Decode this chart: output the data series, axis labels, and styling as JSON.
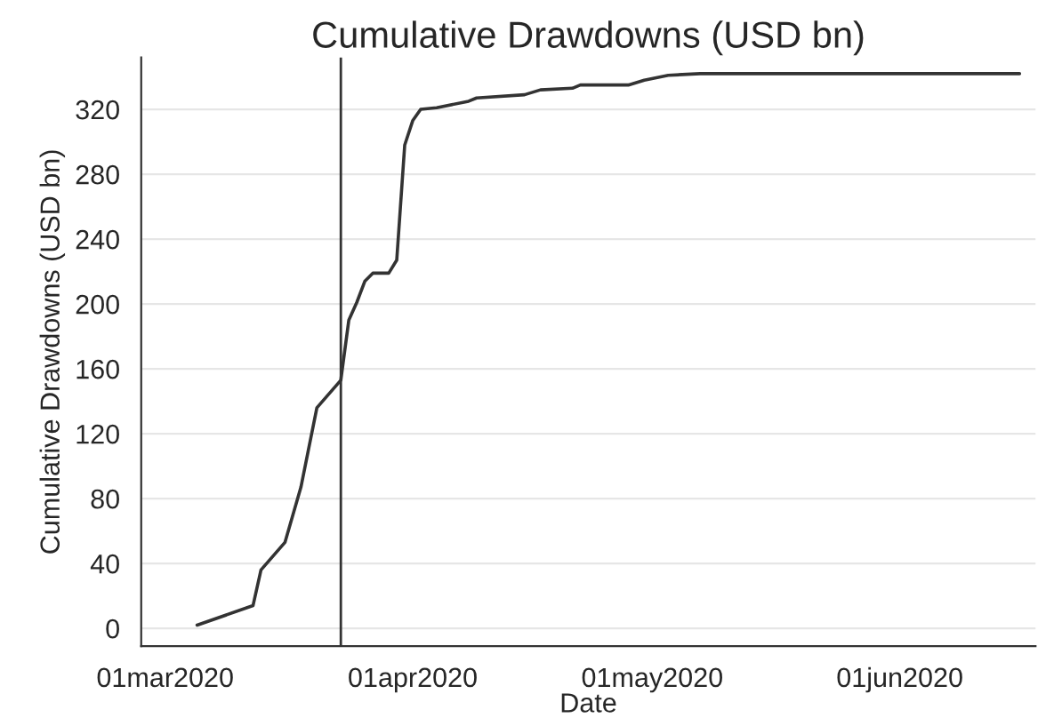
{
  "chart_data": {
    "type": "line",
    "title": "Cumulative Drawdowns (USD bn)",
    "xlabel": "Date",
    "ylabel": "Cumulative Drawdowns (USD bn)",
    "x": [
      "2020-03-05",
      "2020-03-12",
      "2020-03-13",
      "2020-03-16",
      "2020-03-18",
      "2020-03-20",
      "2020-03-23",
      "2020-03-24",
      "2020-03-25",
      "2020-03-26",
      "2020-03-27",
      "2020-03-29",
      "2020-03-30",
      "2020-03-31",
      "2020-04-01",
      "2020-04-02",
      "2020-04-04",
      "2020-04-08",
      "2020-04-09",
      "2020-04-15",
      "2020-04-17",
      "2020-04-21",
      "2020-04-22",
      "2020-04-28",
      "2020-04-30",
      "2020-05-03",
      "2020-05-07",
      "2020-06-16"
    ],
    "series": [
      {
        "color": "#333333",
        "values": [
          2,
          14,
          36,
          53,
          87,
          136,
          153,
          190,
          201,
          214,
          219,
          219,
          227,
          298,
          313,
          320,
          321,
          325,
          327,
          329,
          332,
          333,
          335,
          335,
          338,
          341,
          342,
          342
        ]
      }
    ],
    "xlim": [
      "2020-02-27",
      "2020-06-18"
    ],
    "xticks": [
      {
        "value": "2020-03-01",
        "label": "01mar2020"
      },
      {
        "value": "2020-04-01",
        "label": "01apr2020"
      },
      {
        "value": "2020-05-01",
        "label": "01may2020"
      },
      {
        "value": "2020-06-01",
        "label": "01jun2020"
      }
    ],
    "ylim": [
      -11,
      352
    ],
    "yticks": [
      0,
      40,
      80,
      120,
      160,
      200,
      240,
      280,
      320
    ],
    "ref_lines": [
      {
        "axis": "x",
        "value": "2020-03-23",
        "color": "#333333"
      }
    ],
    "grid": "y",
    "legend": false,
    "marker": "none",
    "line_style": "solid"
  }
}
